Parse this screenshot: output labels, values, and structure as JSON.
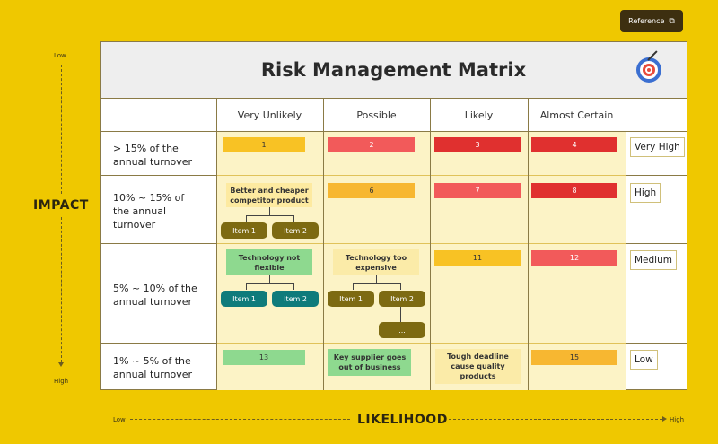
{
  "reference": {
    "label": "Reference",
    "icon": "external-link-icon"
  },
  "impact_axis": {
    "title": "IMPACT",
    "low": "Low",
    "high": "High"
  },
  "likelihood_axis": {
    "title": "LIKELIHOOD",
    "low": "Low",
    "high": "High"
  },
  "matrix": {
    "title": "Risk Management Matrix",
    "icon": "target-icon",
    "columns": [
      "Very Unlikely",
      "Possible",
      "Likely",
      "Almost Certain"
    ],
    "rows": [
      {
        "label_lines": [
          "> 15% of the",
          "annual turnover"
        ],
        "level": "Very High"
      },
      {
        "label_lines": [
          "10% ~ 15% of",
          "the annual",
          "turnover"
        ],
        "level": "High"
      },
      {
        "label_lines": [
          "5% ~ 10% of the",
          "annual turnover"
        ],
        "level": "Medium"
      },
      {
        "label_lines": [
          "1% ~ 5% of the",
          "annual turnover"
        ],
        "level": "Low"
      }
    ],
    "cells": [
      "1",
      "2",
      "3",
      "4",
      "6",
      "7",
      "8",
      "11",
      "12",
      "13",
      "15"
    ],
    "colors": {
      "orange": "#f8c224",
      "pink": "#f25a5a",
      "red": "#e0302f",
      "green": "#8ed98f"
    },
    "notes": {
      "better_cheaper": "Better and cheaper competitor product",
      "tech_not_flexible": "Technology not flexible",
      "tech_too_expensive": "Technology too expensive",
      "key_supplier": "Key supplier goes out of business",
      "tough_deadline": "Tough deadline cause quality products"
    },
    "items": {
      "item1": "Item 1",
      "item2": "Item 2",
      "more": "..."
    }
  }
}
